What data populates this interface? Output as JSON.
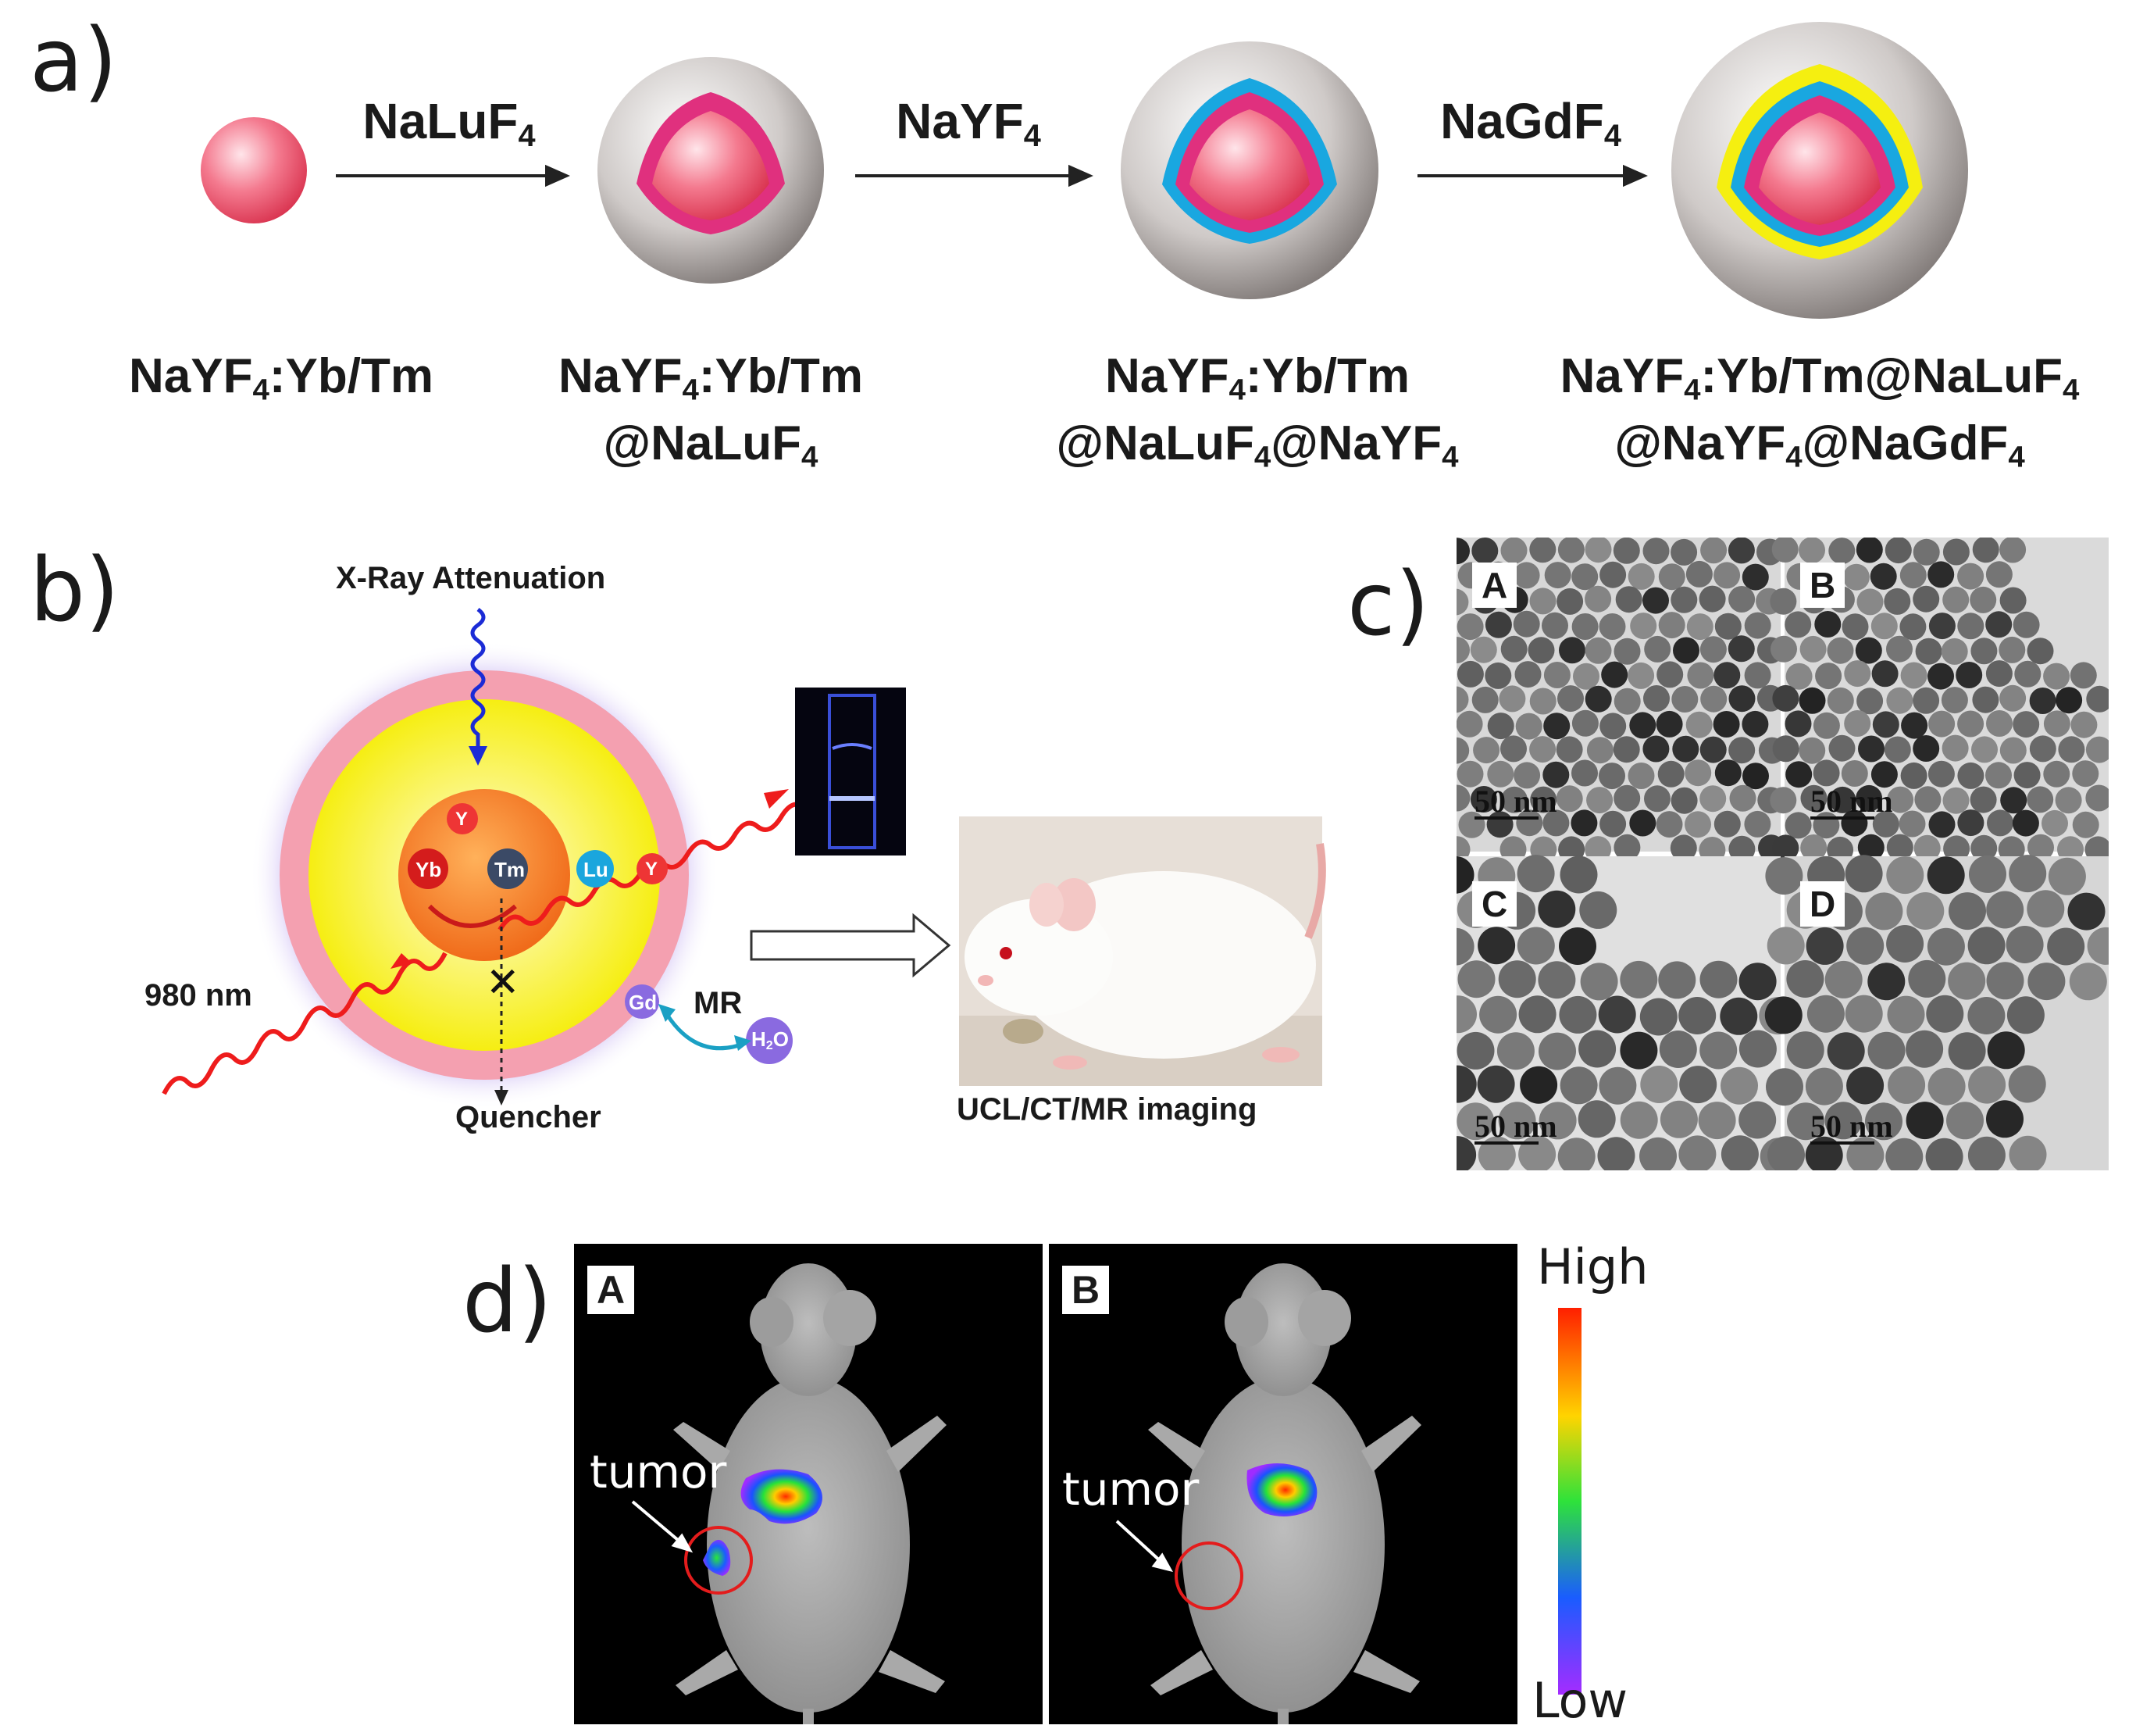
{
  "panel_a": {
    "letter": "a)",
    "arrows": [
      "NaLuF",
      "NaYF",
      "NaGdF"
    ],
    "arrow_sub": "4",
    "species": [
      {
        "l1a": "NaYF",
        "l1s": "4",
        "l1b": ":Yb/Tm"
      },
      {
        "l1a": "NaYF",
        "l1s": "4",
        "l1b": ":Yb/Tm",
        "l2a": "@NaLuF",
        "l2s": "4"
      },
      {
        "l1a": "NaYF",
        "l1s": "4",
        "l1b": ":Yb/Tm",
        "l2a": "@NaLuF",
        "l2s": "4",
        "l2b": "@NaYF",
        "l2t": "4"
      },
      {
        "l1a": "NaYF",
        "l1s": "4",
        "l1b": ":Yb/Tm@NaLuF",
        "l1t": "4",
        "l2a": "@NaYF",
        "l2s": "4",
        "l2b": "@NaGdF",
        "l2t": "4"
      }
    ],
    "colors": {
      "core": "#ee4a6a",
      "lu_shell": "#e0307e",
      "y_shell": "#19a7e0",
      "gd_shell": "#f5ef10",
      "outer": "#9b9492"
    }
  },
  "panel_b": {
    "letter": "b)",
    "xray": "X-Ray Attenuation",
    "nir": "980 nm",
    "quencher": "Quencher",
    "imaging": "UCL/CT/MR imaging",
    "mr": "MR",
    "h2o_a": "H",
    "h2o_s": "2",
    "h2o_b": "O",
    "ions": {
      "y1": "Y",
      "yb": "Yb",
      "tm": "Tm",
      "lu": "Lu",
      "y2": "Y",
      "gd": "Gd"
    },
    "cross": "✕"
  },
  "panel_c": {
    "letter": "c)",
    "tiles": [
      {
        "tag": "A",
        "scale": "50 nm"
      },
      {
        "tag": "B",
        "scale": "50 nm"
      },
      {
        "tag": "C",
        "scale": "50 nm"
      },
      {
        "tag": "D",
        "scale": "50 nm"
      }
    ]
  },
  "panel_d": {
    "letter": "d)",
    "images": [
      {
        "tag": "A",
        "label": "tumor"
      },
      {
        "tag": "B",
        "label": "tumor"
      }
    ],
    "colorbar": {
      "high": "High",
      "low": "Low"
    }
  }
}
